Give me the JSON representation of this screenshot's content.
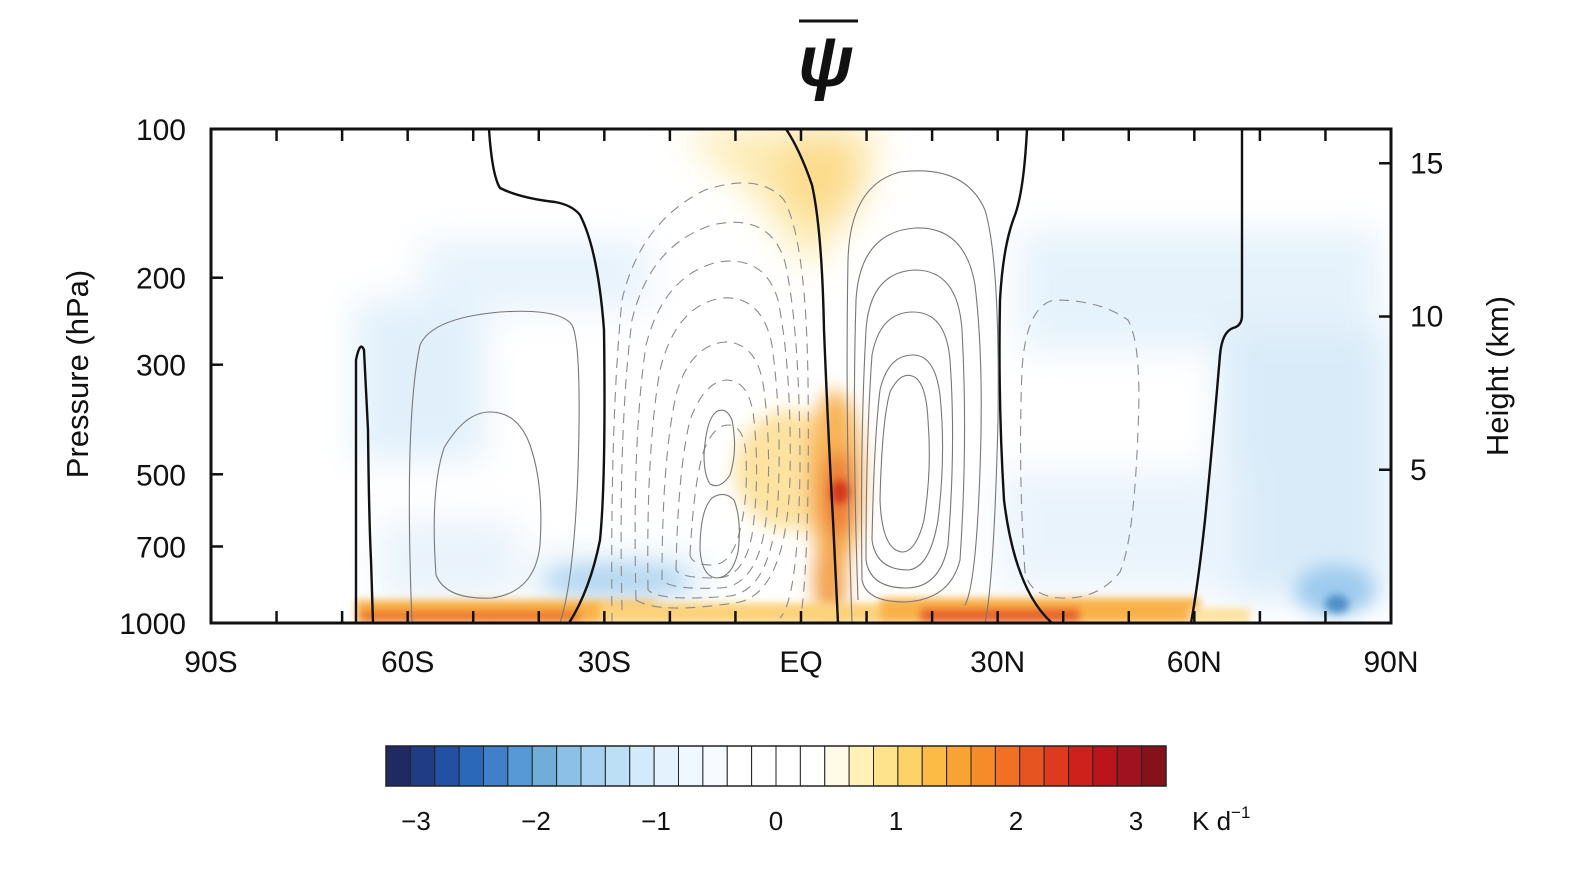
{
  "chart_data": {
    "type": "heatmap",
    "title": "ψ",
    "title_overbar": true,
    "ylabel_left": "Pressure (hPa)",
    "ylabel_right": "Height (km)",
    "x_ticks": [
      "90S",
      "60S",
      "30S",
      "EQ",
      "30N",
      "60N",
      "90N"
    ],
    "x_tick_values": [
      -90,
      -60,
      -30,
      0,
      30,
      60,
      90
    ],
    "xlim": [
      -90,
      90
    ],
    "y_ticks_left": [
      "100",
      "200",
      "300",
      "500",
      "700",
      "1000"
    ],
    "y_tick_values_left": [
      100,
      200,
      300,
      500,
      700,
      1000
    ],
    "ylim_hpa": [
      1000,
      100
    ],
    "y_scale": "log",
    "y_ticks_right": [
      "15",
      "10",
      "5"
    ],
    "y_tick_values_right": [
      15,
      10,
      5
    ],
    "colorbar": {
      "ticks": [
        "−3",
        "−2",
        "−1",
        "0",
        "1",
        "2",
        "3"
      ],
      "tick_values": [
        -3,
        -2,
        -1,
        0,
        1,
        2,
        3
      ],
      "unit_base": "K d",
      "unit_sup": "−1",
      "range": [
        -3.25,
        3.25
      ],
      "bins": 32,
      "colors": [
        "#1f2a63",
        "#203c85",
        "#2450a3",
        "#2c68ba",
        "#3f80c9",
        "#5799d6",
        "#71add9",
        "#8cc0e6",
        "#a6d1f0",
        "#bddff6",
        "#d2eafa",
        "#e3f2fd",
        "#eff8ff",
        "#f7fbff",
        "#ffffff",
        "#ffffff",
        "#ffffff",
        "#ffffff",
        "#fffbe6",
        "#fff1b8",
        "#fee38c",
        "#fdd267",
        "#fcbb45",
        "#f9a333",
        "#f68b2a",
        "#f07026",
        "#e65421",
        "#dd3a1f",
        "#cf211b",
        "#bb141d",
        "#a0121d",
        "#85121a"
      ]
    },
    "contours": {
      "description_free": true,
      "zero_line": "thick solid",
      "positive": "thin solid",
      "negative": "thin dashed"
    },
    "grid": false
  }
}
